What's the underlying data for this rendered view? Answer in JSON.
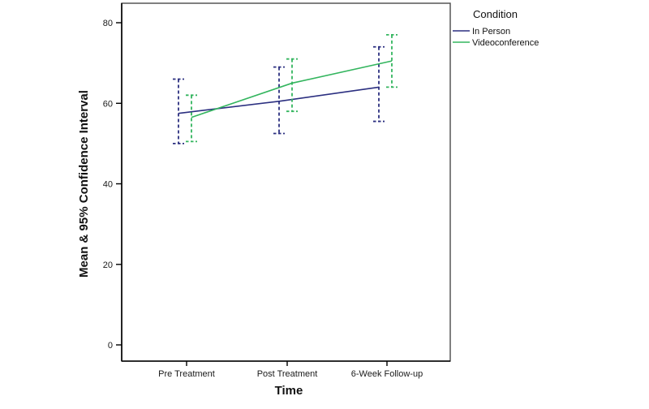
{
  "chart_data": {
    "type": "line",
    "title": "",
    "xlabel": "Time",
    "ylabel": "Mean & 95% Confidence Interval",
    "categories": [
      "Pre Treatment",
      "Post Treatment",
      "6-Week Follow-up"
    ],
    "yticks": [
      0,
      20,
      40,
      60,
      80
    ],
    "ylim": [
      0,
      85
    ],
    "grid": false,
    "error_bar_style": "95% confidence interval, dashed with dashed caps",
    "legend": {
      "title": "Condition",
      "position": "top-right-outside"
    },
    "series": [
      {
        "name": "In Person",
        "color": "#2b2f80",
        "means": [
          57.5,
          60.5,
          64
        ],
        "ci_low": [
          50,
          52.5,
          55.5
        ],
        "ci_high": [
          66,
          69,
          74
        ]
      },
      {
        "name": "Videoconference",
        "color": "#33b55e",
        "means": [
          56.5,
          65,
          70.5
        ],
        "ci_low": [
          50.5,
          58,
          64
        ],
        "ci_high": [
          62,
          71,
          77
        ]
      }
    ]
  }
}
